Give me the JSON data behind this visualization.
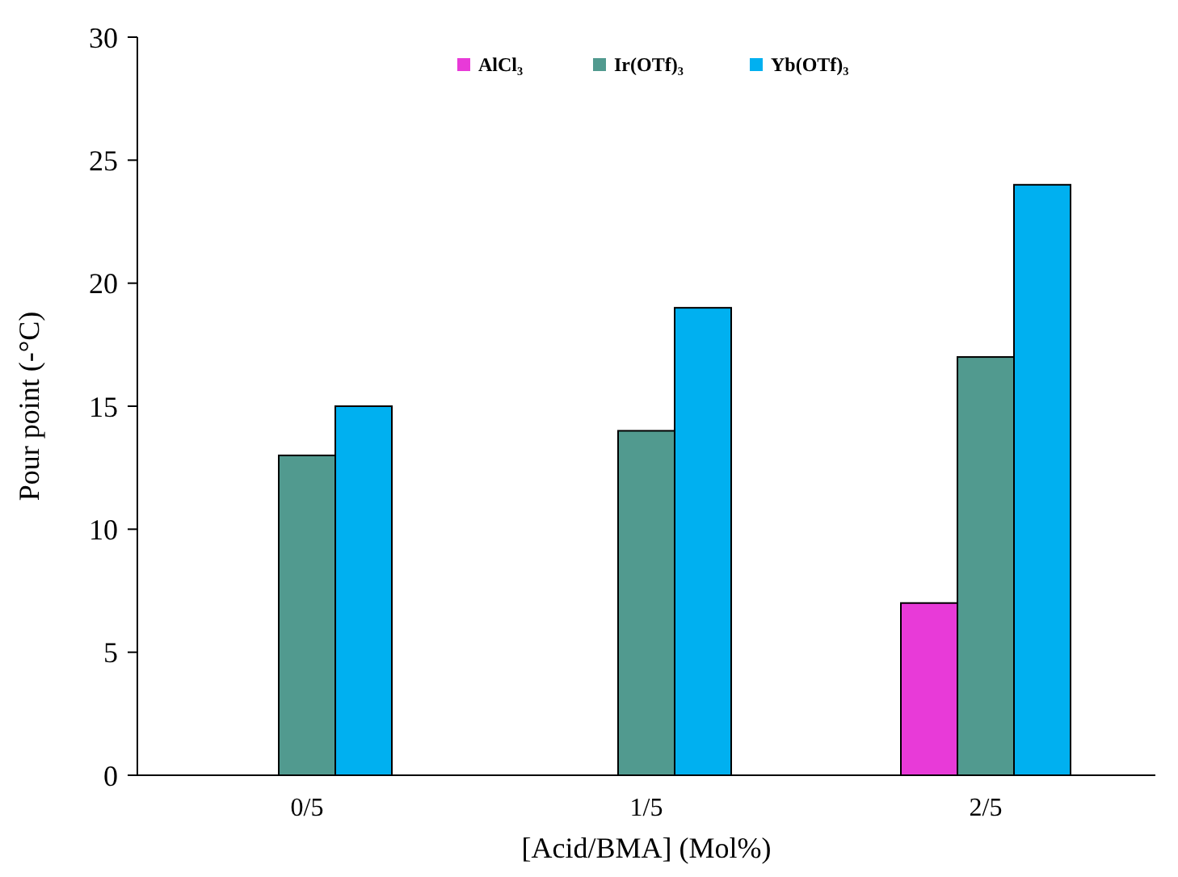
{
  "chart_data": {
    "type": "bar",
    "xlabel": "[Acid/BMA] (Mol%)",
    "ylabel": "Pour point (-°C)",
    "categories": [
      "0/5",
      "1/5",
      "2/5"
    ],
    "series": [
      {
        "name": "AlCl₃",
        "color": "#e83ad8",
        "values": [
          null,
          null,
          7
        ]
      },
      {
        "name": "Ir(OTf)₃",
        "color": "#519a8f",
        "values": [
          13,
          14,
          17
        ]
      },
      {
        "name": "Yb(OTf)₃",
        "color": "#00b0f0",
        "values": [
          15,
          19,
          24
        ]
      }
    ],
    "ylim": [
      0,
      30
    ],
    "yticks": [
      0,
      5,
      10,
      15,
      20,
      25,
      30
    ],
    "grid": false,
    "legend": "top"
  }
}
